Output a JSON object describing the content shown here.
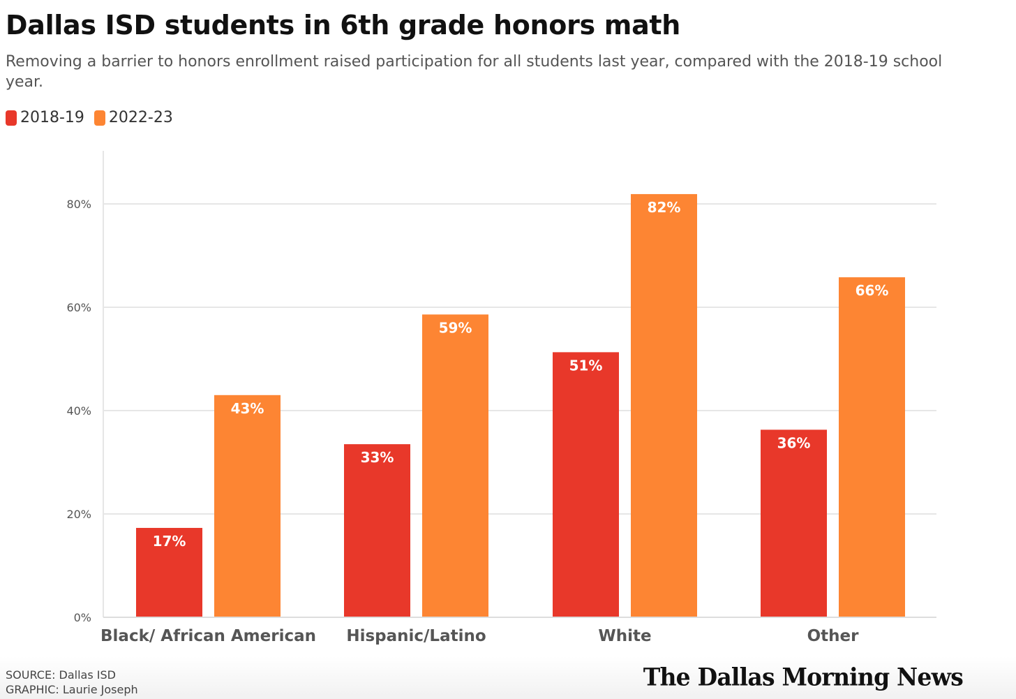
{
  "header": {
    "title": "Dallas ISD students in 6th grade honors math",
    "subtitle": "Removing a barrier to honors enrollment raised participation for all students last year, compared with the 2018-19 school year."
  },
  "footer": {
    "source": "SOURCE: Dallas ISD",
    "graphic": "GRAPHIC: Laurie Joseph",
    "logo": "The Dallas Morning News"
  },
  "chart_data": {
    "type": "bar",
    "title": "Dallas ISD students in 6th grade honors math",
    "subtitle": "Removing a barrier to honors enrollment raised participation for all students last year, compared with the 2018-19 school year.",
    "categories": [
      "Black/ African American",
      "Hispanic/Latino",
      "White",
      "Other"
    ],
    "series": [
      {
        "name": "2018-19",
        "color": "#e8382a",
        "values": [
          17.3,
          33.5,
          51.3,
          36.3
        ],
        "labels": [
          "17%",
          "33%",
          "51%",
          "36%"
        ]
      },
      {
        "name": "2022-23",
        "color": "#fd8533",
        "values": [
          43.0,
          58.6,
          81.9,
          65.8
        ],
        "labels": [
          "43%",
          "59%",
          "82%",
          "66%"
        ]
      }
    ],
    "y_ticks": [
      0,
      20,
      40,
      60,
      80
    ],
    "y_tick_labels": [
      "0%",
      "20%",
      "40%",
      "60%",
      "80%"
    ],
    "ylim": [
      0,
      90
    ],
    "grid": "horizontal",
    "legend": "top-left"
  }
}
